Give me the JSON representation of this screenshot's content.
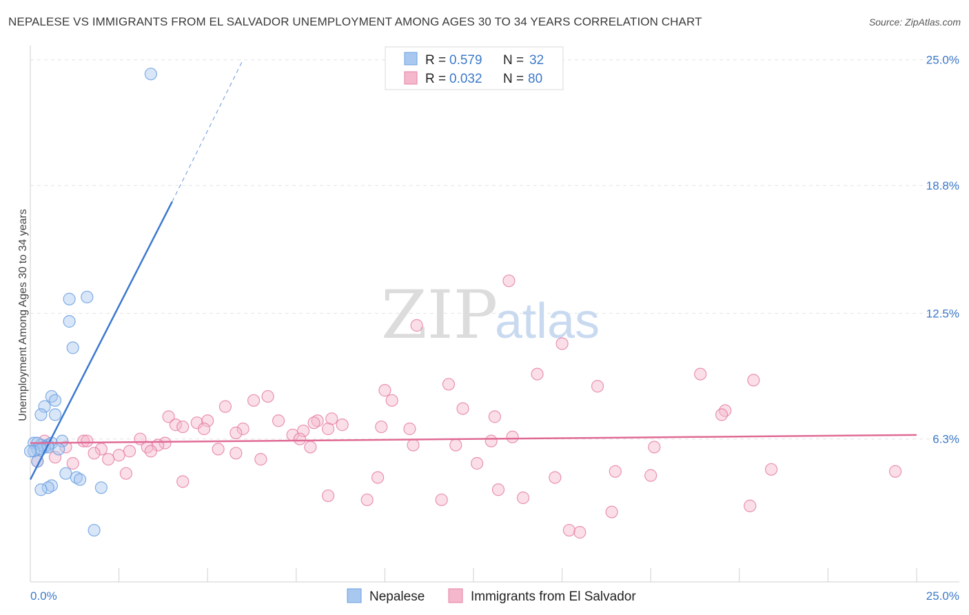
{
  "header": {
    "title": "NEPALESE VS IMMIGRANTS FROM EL SALVADOR UNEMPLOYMENT AMONG AGES 30 TO 34 YEARS CORRELATION CHART",
    "source": "Source: ZipAtlas.com"
  },
  "watermark": {
    "zip": "ZIP",
    "atlas": "atlas"
  },
  "legend": {
    "r_label": "R =",
    "n_label": "N =",
    "series": [
      {
        "name": "Nepalese",
        "r": "0.579",
        "n": "32",
        "color": "#6a9fe0",
        "fill": "#a9c8f0"
      },
      {
        "name": "Immigrants from El Salvador",
        "r": "0.032",
        "n": "80",
        "color": "#e67fa3",
        "fill": "#f5b7cc"
      }
    ]
  },
  "chart_data": {
    "type": "scatter",
    "title": "NEPALESE VS IMMIGRANTS FROM EL SALVADOR UNEMPLOYMENT AMONG AGES 30 TO 34 YEARS CORRELATION CHART",
    "xlabel": "",
    "ylabel": "Unemployment Among Ages 30 to 34 years",
    "xlim": [
      0,
      25
    ],
    "ylim": [
      0,
      25.5
    ],
    "x_tick_labels": [
      "0.0%",
      "25.0%"
    ],
    "y_ticks": [
      6.3,
      12.5,
      18.8,
      25.0
    ],
    "y_tick_labels": [
      "6.3%",
      "12.5%",
      "18.8%",
      "25.0%"
    ],
    "series": [
      {
        "name": "Nepalese",
        "points": [
          [
            3.4,
            24.3
          ],
          [
            1.1,
            13.2
          ],
          [
            1.6,
            13.3
          ],
          [
            1.1,
            12.1
          ],
          [
            1.2,
            10.8
          ],
          [
            0.6,
            8.4
          ],
          [
            0.7,
            8.2
          ],
          [
            0.4,
            7.9
          ],
          [
            0.3,
            7.5
          ],
          [
            0.7,
            7.5
          ],
          [
            0.1,
            6.1
          ],
          [
            0.3,
            6.0
          ],
          [
            0.2,
            6.1
          ],
          [
            0.5,
            6.0
          ],
          [
            0.6,
            6.1
          ],
          [
            0.9,
            6.2
          ],
          [
            0.4,
            5.9
          ],
          [
            0.8,
            5.8
          ],
          [
            0.2,
            5.8
          ],
          [
            0.5,
            5.9
          ],
          [
            0.1,
            5.7
          ],
          [
            0.3,
            5.8
          ],
          [
            0.0,
            5.7
          ],
          [
            0.2,
            5.2
          ],
          [
            1.0,
            4.6
          ],
          [
            1.3,
            4.4
          ],
          [
            1.4,
            4.3
          ],
          [
            0.6,
            4.0
          ],
          [
            0.5,
            3.9
          ],
          [
            0.3,
            3.8
          ],
          [
            2.0,
            3.9
          ],
          [
            1.8,
            1.8
          ]
        ],
        "trend": {
          "x0": 0.0,
          "y0": 4.3,
          "x1": 4.0,
          "y1": 18.0,
          "dash_to_x": 6.0,
          "dash_to_y": 25.0
        }
      },
      {
        "name": "Immigrants from El Salvador",
        "points": [
          [
            13.5,
            14.1
          ],
          [
            10.9,
            11.9
          ],
          [
            15.0,
            11.0
          ],
          [
            14.3,
            9.5
          ],
          [
            18.9,
            9.5
          ],
          [
            11.8,
            9.0
          ],
          [
            16.0,
            8.9
          ],
          [
            20.4,
            9.2
          ],
          [
            10.0,
            8.7
          ],
          [
            6.7,
            8.4
          ],
          [
            6.3,
            8.2
          ],
          [
            10.2,
            8.2
          ],
          [
            5.5,
            7.9
          ],
          [
            12.2,
            7.8
          ],
          [
            19.6,
            7.7
          ],
          [
            19.5,
            7.5
          ],
          [
            3.9,
            7.4
          ],
          [
            4.1,
            7.0
          ],
          [
            4.3,
            6.9
          ],
          [
            4.7,
            7.1
          ],
          [
            5.0,
            7.2
          ],
          [
            4.9,
            6.8
          ],
          [
            7.0,
            7.2
          ],
          [
            8.1,
            7.2
          ],
          [
            8.5,
            7.3
          ],
          [
            8.8,
            7.0
          ],
          [
            9.9,
            6.9
          ],
          [
            10.7,
            6.8
          ],
          [
            7.7,
            6.7
          ],
          [
            6.0,
            6.8
          ],
          [
            5.8,
            6.6
          ],
          [
            8.4,
            6.8
          ],
          [
            8.0,
            7.1
          ],
          [
            7.4,
            6.5
          ],
          [
            7.6,
            6.3
          ],
          [
            13.1,
            7.4
          ],
          [
            3.1,
            6.3
          ],
          [
            3.8,
            6.1
          ],
          [
            1.5,
            6.2
          ],
          [
            1.6,
            6.2
          ],
          [
            0.4,
            6.2
          ],
          [
            1.0,
            5.9
          ],
          [
            2.0,
            5.8
          ],
          [
            3.3,
            5.9
          ],
          [
            3.6,
            6.0
          ],
          [
            3.4,
            5.7
          ],
          [
            2.8,
            5.7
          ],
          [
            1.8,
            5.6
          ],
          [
            2.5,
            5.5
          ],
          [
            5.3,
            5.8
          ],
          [
            5.8,
            5.6
          ],
          [
            7.9,
            5.9
          ],
          [
            10.8,
            6.0
          ],
          [
            12.0,
            6.0
          ],
          [
            13.0,
            6.2
          ],
          [
            13.6,
            6.4
          ],
          [
            17.6,
            5.9
          ],
          [
            6.5,
            5.3
          ],
          [
            2.2,
            5.3
          ],
          [
            1.2,
            5.1
          ],
          [
            12.6,
            5.1
          ],
          [
            4.3,
            4.2
          ],
          [
            9.8,
            4.4
          ],
          [
            14.8,
            4.4
          ],
          [
            16.5,
            4.7
          ],
          [
            17.5,
            4.5
          ],
          [
            20.9,
            4.8
          ],
          [
            24.4,
            4.7
          ],
          [
            2.7,
            4.6
          ],
          [
            0.7,
            5.4
          ],
          [
            8.4,
            3.5
          ],
          [
            9.5,
            3.3
          ],
          [
            11.6,
            3.3
          ],
          [
            13.2,
            3.8
          ],
          [
            13.9,
            3.4
          ],
          [
            20.3,
            3.0
          ],
          [
            16.4,
            2.7
          ],
          [
            15.2,
            1.8
          ],
          [
            15.5,
            1.7
          ],
          [
            0.2,
            5.2
          ]
        ],
        "trend": {
          "x0": 0.0,
          "y0": 6.1,
          "x1": 25.0,
          "y1": 6.5
        }
      }
    ]
  }
}
